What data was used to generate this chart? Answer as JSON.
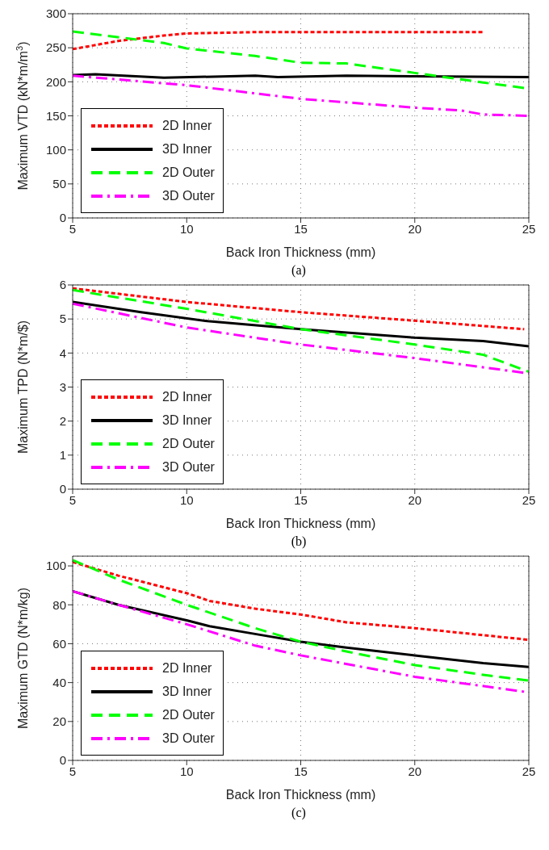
{
  "chart_data": [
    {
      "type": "line",
      "xlabel": "Back Iron Thickness (mm)",
      "ylabel": "Maximum VTD (kN*m/m$^{3}$)",
      "annotations": [
        "(a)"
      ],
      "xlim": [
        5,
        25
      ],
      "xticks": [
        5,
        10,
        15,
        20,
        25
      ],
      "ylim": [
        0,
        300
      ],
      "yticks": [
        0,
        50,
        100,
        150,
        200,
        250,
        300
      ],
      "grid": true,
      "legend": "bottom left",
      "series": [
        {
          "name": "2D Inner",
          "color": "#ff0000",
          "line_style": "dotted",
          "x": [
            5,
            7,
            9,
            10,
            13,
            15,
            17,
            20,
            23
          ],
          "values": [
            248,
            260,
            268,
            271,
            273,
            273,
            273,
            273,
            273
          ]
        },
        {
          "name": "3D Inner",
          "color": "#000000",
          "line_style": "solid",
          "x": [
            5,
            6,
            9,
            13,
            14,
            17,
            20,
            25
          ],
          "values": [
            210,
            211,
            206,
            209,
            207,
            209,
            208,
            207
          ]
        },
        {
          "name": "2D Outer",
          "color": "#00ff00",
          "line_style": "dashed",
          "x": [
            5,
            9,
            10,
            13,
            15,
            17,
            20,
            23,
            25
          ],
          "values": [
            274,
            257,
            249,
            238,
            228,
            227,
            213,
            199,
            190
          ]
        },
        {
          "name": "3D Outer",
          "color": "#ff00ff",
          "line_style": "dashdot",
          "x": [
            5,
            10,
            15,
            20,
            22,
            23,
            25
          ],
          "values": [
            209,
            195,
            175,
            162,
            158,
            152,
            150
          ]
        }
      ]
    },
    {
      "type": "line",
      "xlabel": "Back Iron Thickness (mm)",
      "ylabel": "Maximum TPD (N*m/$)",
      "annotations": [
        "(b)"
      ],
      "xlim": [
        5,
        25
      ],
      "xticks": [
        5,
        10,
        15,
        20,
        25
      ],
      "ylim": [
        0,
        6
      ],
      "yticks": [
        0,
        1,
        2,
        3,
        4,
        5,
        6
      ],
      "grid": true,
      "legend": "bottom left",
      "series": [
        {
          "name": "2D Inner",
          "color": "#ff0000",
          "line_style": "dotted",
          "x": [
            5,
            10,
            15,
            20,
            24.8
          ],
          "values": [
            5.9,
            5.5,
            5.2,
            4.95,
            4.7
          ]
        },
        {
          "name": "3D Inner",
          "color": "#000000",
          "line_style": "solid",
          "x": [
            5,
            8,
            11,
            15,
            20,
            23,
            25
          ],
          "values": [
            5.5,
            5.2,
            4.93,
            4.7,
            4.45,
            4.35,
            4.2
          ]
        },
        {
          "name": "2D Outer",
          "color": "#00ff00",
          "line_style": "dashed",
          "x": [
            5,
            10,
            15,
            20,
            23,
            25
          ],
          "values": [
            5.85,
            5.3,
            4.7,
            4.25,
            3.95,
            3.45
          ]
        },
        {
          "name": "3D Outer",
          "color": "#ff00ff",
          "line_style": "dashdot",
          "x": [
            5,
            10,
            15,
            20,
            25
          ],
          "values": [
            5.45,
            4.75,
            4.25,
            3.85,
            3.4
          ]
        }
      ]
    },
    {
      "type": "line",
      "xlabel": "Back Iron Thickness (mm)",
      "ylabel": "Maximum GTD (N*m/kg)",
      "annotations": [
        "(c)"
      ],
      "xlim": [
        5,
        25
      ],
      "xticks": [
        5,
        10,
        15,
        20,
        25
      ],
      "ylim": [
        0,
        105
      ],
      "yticks": [
        0,
        20,
        40,
        60,
        80,
        100
      ],
      "grid": true,
      "legend": "bottom left",
      "series": [
        {
          "name": "2D Inner",
          "color": "#ff0000",
          "line_style": "dotted",
          "x": [
            5,
            7,
            10,
            11,
            13,
            15,
            17,
            20,
            25
          ],
          "values": [
            102,
            95,
            86,
            82,
            78,
            75,
            71,
            68,
            62
          ]
        },
        {
          "name": "3D Inner",
          "color": "#000000",
          "line_style": "solid",
          "x": [
            5,
            7,
            10,
            11,
            13,
            15,
            17,
            20,
            23,
            25
          ],
          "values": [
            87,
            80,
            72,
            69,
            65,
            61,
            58,
            54,
            50,
            48
          ]
        },
        {
          "name": "2D Outer",
          "color": "#00ff00",
          "line_style": "dashed",
          "x": [
            5,
            7,
            10,
            13,
            15,
            17,
            20,
            23,
            25
          ],
          "values": [
            103,
            93,
            80,
            68,
            61,
            56,
            49,
            44,
            41
          ]
        },
        {
          "name": "3D Outer",
          "color": "#ff00ff",
          "line_style": "dashdot",
          "x": [
            5,
            7,
            10,
            13,
            15,
            20,
            25
          ],
          "values": [
            87,
            80,
            70,
            59,
            54,
            43,
            35
          ]
        }
      ]
    }
  ]
}
